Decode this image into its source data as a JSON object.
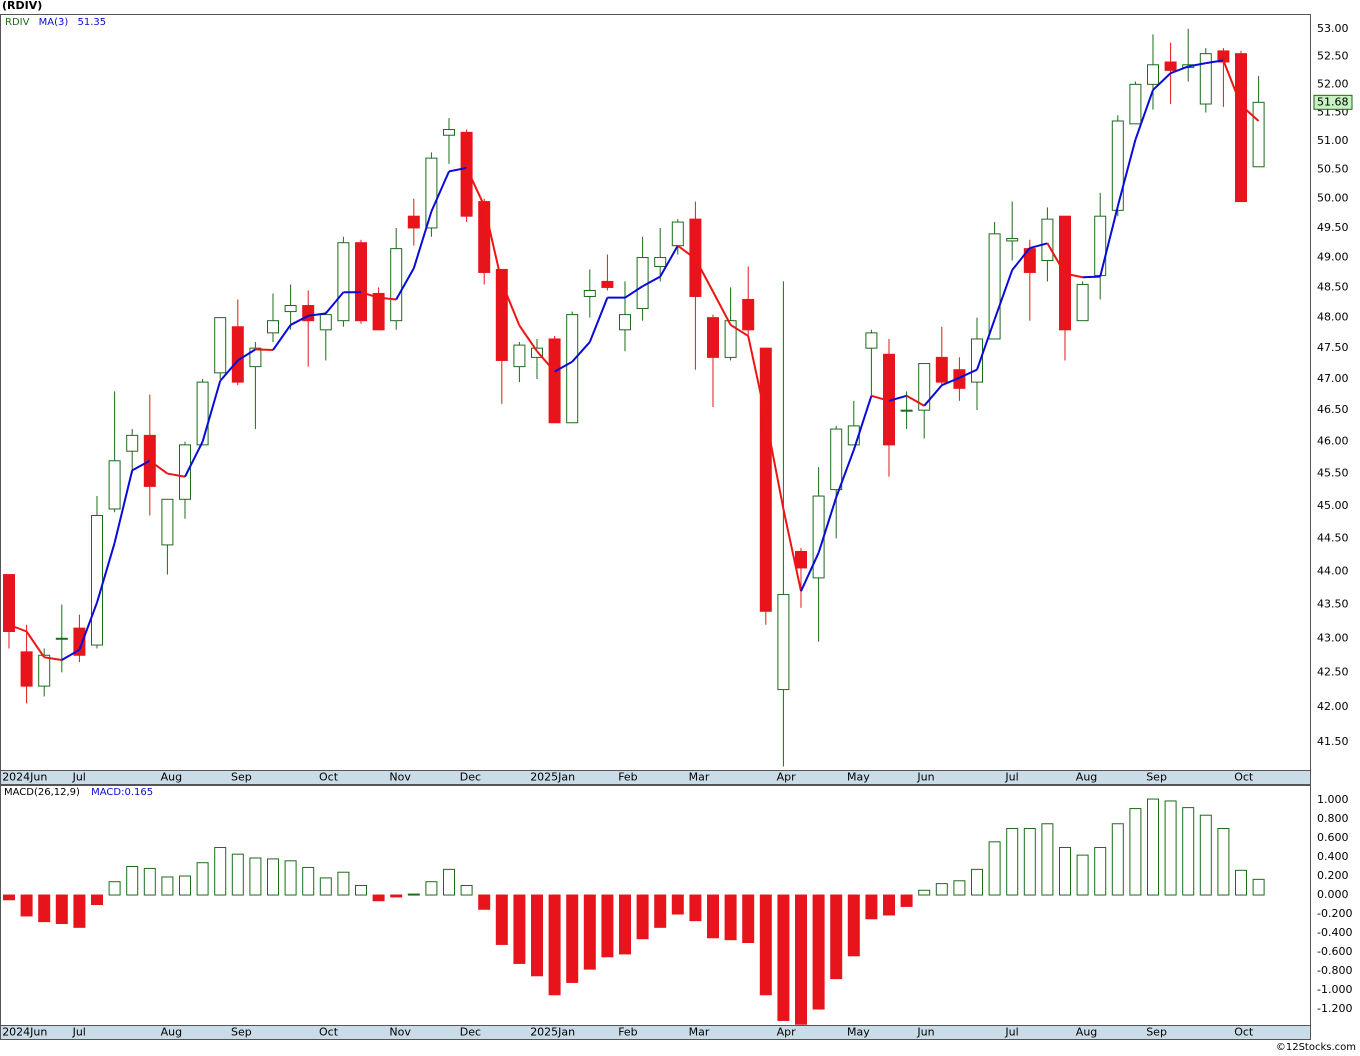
{
  "chart_data": [
    {
      "type": "candlestick",
      "title": "(RDIV)",
      "symbol": "RDIV",
      "ma_name": "MA(3)",
      "categories": [
        "2024Jun",
        null,
        null,
        null,
        "Jul",
        null,
        null,
        null,
        null,
        "Aug",
        null,
        null,
        null,
        "Sep",
        null,
        null,
        null,
        null,
        "Oct",
        null,
        null,
        null,
        "Nov",
        null,
        null,
        null,
        "Dec",
        null,
        null,
        null,
        "2025Jan",
        null,
        null,
        null,
        null,
        "Feb",
        null,
        null,
        null,
        "Mar",
        null,
        null,
        null,
        null,
        "Apr",
        null,
        null,
        null,
        "May",
        null,
        null,
        null,
        "Jun",
        null,
        null,
        null,
        null,
        "Jul",
        null,
        null,
        null,
        "Aug",
        null,
        null,
        null,
        "Sep",
        null,
        null,
        null,
        null,
        "Oct",
        null
      ],
      "open": [
        43.95,
        42.8,
        42.3,
        43.0,
        43.15,
        42.9,
        44.95,
        45.85,
        46.1,
        44.4,
        45.1,
        45.95,
        47.1,
        47.85,
        47.2,
        47.75,
        48.1,
        48.2,
        47.8,
        47.95,
        49.25,
        48.4,
        47.95,
        49.7,
        49.5,
        51.1,
        51.15,
        49.95,
        48.8,
        47.2,
        47.35,
        47.65,
        46.3,
        48.35,
        48.6,
        47.8,
        48.15,
        48.85,
        49.2,
        49.65,
        48.0,
        47.35,
        48.3,
        47.5,
        42.25,
        44.3,
        43.9,
        45.25,
        45.95,
        47.5,
        47.4,
        46.5,
        46.5,
        47.35,
        47.15,
        46.95,
        47.65,
        49.28,
        49.15,
        48.95,
        49.7,
        47.95,
        48.7,
        49.8,
        51.3,
        52.0,
        52.4,
        52.3,
        51.65,
        52.6,
        52.55,
        50.55
      ],
      "high": [
        43.95,
        43.2,
        42.85,
        43.5,
        43.35,
        45.15,
        46.8,
        46.2,
        46.75,
        45.1,
        46.0,
        47.0,
        48.0,
        48.3,
        47.6,
        48.4,
        48.55,
        48.45,
        48.1,
        49.35,
        49.3,
        48.5,
        49.5,
        50.0,
        50.8,
        51.4,
        51.2,
        50.0,
        48.8,
        47.6,
        47.65,
        47.7,
        48.1,
        48.8,
        49.05,
        48.6,
        49.35,
        49.5,
        49.65,
        49.95,
        48.05,
        48.5,
        48.85,
        47.5,
        48.6,
        44.35,
        45.6,
        46.25,
        46.65,
        47.8,
        47.65,
        46.8,
        47.25,
        47.85,
        47.35,
        48.0,
        49.6,
        49.95,
        49.3,
        49.85,
        49.7,
        48.6,
        50.1,
        51.45,
        52.05,
        52.9,
        52.75,
        53.0,
        52.65,
        52.65,
        52.6,
        52.15
      ],
      "low": [
        42.85,
        42.05,
        42.15,
        42.5,
        42.65,
        42.85,
        44.9,
        45.5,
        44.85,
        43.95,
        44.8,
        45.95,
        47.0,
        46.9,
        46.2,
        47.6,
        47.8,
        47.2,
        47.3,
        47.85,
        47.9,
        47.8,
        47.8,
        49.2,
        49.35,
        50.6,
        49.6,
        48.55,
        46.6,
        46.95,
        47.0,
        46.3,
        46.3,
        48.0,
        48.45,
        47.45,
        47.95,
        48.6,
        49.05,
        47.15,
        46.55,
        47.3,
        47.7,
        43.2,
        41.15,
        43.45,
        42.95,
        44.5,
        45.95,
        46.7,
        45.45,
        46.2,
        46.05,
        46.9,
        46.65,
        46.5,
        47.65,
        48.95,
        47.95,
        48.6,
        47.3,
        47.95,
        48.3,
        49.7,
        51.3,
        51.55,
        51.65,
        52.05,
        51.5,
        51.6,
        49.95,
        50.55
      ],
      "close": [
        43.1,
        42.3,
        42.75,
        43.0,
        42.75,
        44.85,
        45.7,
        46.1,
        45.3,
        45.1,
        45.95,
        46.95,
        48.0,
        46.95,
        47.5,
        47.95,
        48.2,
        47.95,
        48.05,
        49.25,
        47.95,
        47.8,
        49.15,
        49.5,
        50.7,
        51.2,
        49.7,
        48.75,
        47.3,
        47.55,
        47.5,
        46.3,
        48.05,
        48.45,
        48.5,
        48.05,
        49.0,
        49.0,
        49.6,
        48.35,
        47.35,
        47.95,
        47.8,
        43.4,
        43.65,
        44.05,
        45.15,
        46.2,
        46.25,
        47.75,
        45.95,
        46.5,
        47.25,
        46.95,
        46.85,
        47.65,
        49.4,
        49.32,
        48.75,
        49.65,
        47.8,
        48.55,
        49.7,
        51.35,
        52.0,
        52.35,
        52.25,
        52.35,
        52.55,
        52.4,
        49.95,
        51.68
      ],
      "ma": [
        43.2,
        43.1,
        42.72,
        42.68,
        42.83,
        43.53,
        44.43,
        45.55,
        45.7,
        45.5,
        45.45,
        46.0,
        46.97,
        47.3,
        47.48,
        47.47,
        47.88,
        48.03,
        48.07,
        48.42,
        48.42,
        48.33,
        48.3,
        48.82,
        49.78,
        50.47,
        50.53,
        49.88,
        48.58,
        47.87,
        47.45,
        47.12,
        47.28,
        47.6,
        48.33,
        48.33,
        48.52,
        48.68,
        49.2,
        48.98,
        48.43,
        47.88,
        47.7,
        46.38,
        44.95,
        43.7,
        44.28,
        45.13,
        45.87,
        46.73,
        46.65,
        46.73,
        46.57,
        46.9,
        47.02,
        47.15,
        47.97,
        48.79,
        49.16,
        49.24,
        48.73,
        48.67,
        48.68,
        49.87,
        51.02,
        51.9,
        52.2,
        52.32,
        52.38,
        52.43,
        51.63,
        51.35
      ],
      "ylim": [
        41.1,
        53.27
      ],
      "yticks": [
        {
          "value": 53,
          "label": "53.00"
        },
        {
          "value": 52.5,
          "label": "52.50"
        },
        {
          "value": 52,
          "label": "52.00"
        },
        {
          "value": 51.5,
          "label": "51.50"
        },
        {
          "value": 51,
          "label": "51.00"
        },
        {
          "value": 50.5,
          "label": "50.50"
        },
        {
          "value": 50,
          "label": "50.00"
        },
        {
          "value": 49.5,
          "label": "49.50"
        },
        {
          "value": 49,
          "label": "49.00"
        },
        {
          "value": 48.5,
          "label": "48.50"
        },
        {
          "value": 48,
          "label": "48.00"
        },
        {
          "value": 47.5,
          "label": "47.50"
        },
        {
          "value": 47,
          "label": "47.00"
        },
        {
          "value": 46.5,
          "label": "46.50"
        },
        {
          "value": 46,
          "label": "46.00"
        },
        {
          "value": 45.5,
          "label": "45.50"
        },
        {
          "value": 45,
          "label": "45.00"
        },
        {
          "value": 44.5,
          "label": "44.50"
        },
        {
          "value": 44,
          "label": "44.00"
        },
        {
          "value": 43.5,
          "label": "43.50"
        },
        {
          "value": 43,
          "label": "43.00"
        },
        {
          "value": 42.5,
          "label": "42.50"
        },
        {
          "value": 42,
          "label": "42.00"
        },
        {
          "value": 41.5,
          "label": "41.50"
        }
      ],
      "log_scale": true,
      "grid": true,
      "up_color": "#1c6a1c",
      "down_color": "#e8141c",
      "ma_up_color": "#0a0ad8",
      "ma_down_color": "#ee1414"
    },
    {
      "type": "bar",
      "title": "MACD(26,12,9)",
      "value_name": "MACD:",
      "values": [
        -0.05,
        -0.22,
        -0.28,
        -0.3,
        -0.34,
        -0.1,
        0.14,
        0.3,
        0.28,
        0.19,
        0.2,
        0.34,
        0.5,
        0.43,
        0.39,
        0.38,
        0.36,
        0.29,
        0.18,
        0.24,
        0.1,
        -0.06,
        -0.02,
        0.01,
        0.14,
        0.27,
        0.1,
        -0.15,
        -0.52,
        -0.72,
        -0.85,
        -1.05,
        -0.92,
        -0.78,
        -0.65,
        -0.62,
        -0.46,
        -0.34,
        -0.2,
        -0.27,
        -0.45,
        -0.47,
        -0.5,
        -1.05,
        -1.32,
        -1.36,
        -1.2,
        -0.88,
        -0.64,
        -0.25,
        -0.21,
        -0.12,
        0.05,
        0.12,
        0.15,
        0.27,
        0.56,
        0.7,
        0.7,
        0.75,
        0.5,
        0.42,
        0.5,
        0.75,
        0.91,
        1.01,
        0.99,
        0.92,
        0.84,
        0.7,
        0.26,
        0.165
      ],
      "ylim": [
        -1.368,
        1.158
      ],
      "yticks": [
        {
          "value": 1,
          "label": "1.000"
        },
        {
          "value": 0.8,
          "label": "0.800"
        },
        {
          "value": 0.6,
          "label": "0.600"
        },
        {
          "value": 0.4,
          "label": "0.400"
        },
        {
          "value": 0.2,
          "label": "0.200"
        },
        {
          "value": 0,
          "label": "0.000"
        },
        {
          "value": -0.2,
          "label": "-0.200"
        },
        {
          "value": -0.4,
          "label": "-0.400"
        },
        {
          "value": -0.6,
          "label": "-0.600"
        },
        {
          "value": -0.8,
          "label": "-0.800"
        },
        {
          "value": -1,
          "label": "-1.000"
        },
        {
          "value": -1.2,
          "label": "-1.200"
        }
      ],
      "grid": true,
      "pos_color": "#1c6a1c",
      "neg_color": "#e8141c"
    }
  ],
  "footer": "©12Stocks.com"
}
